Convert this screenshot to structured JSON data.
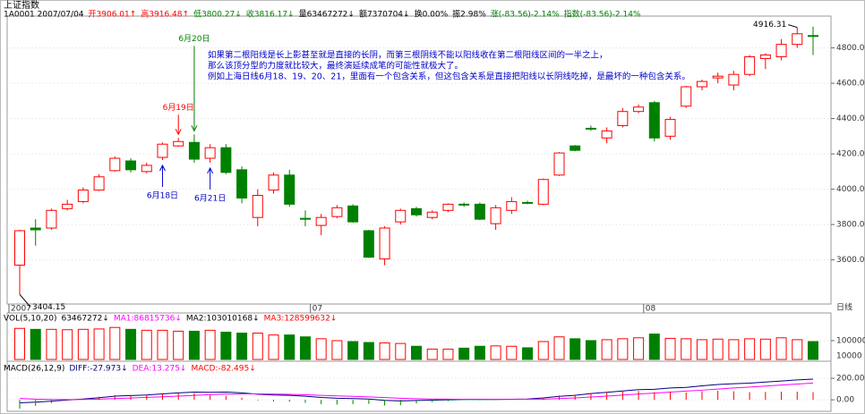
{
  "chart_data": [
    {
      "type": "candlestick",
      "title": "上证指数",
      "info": [
        {
          "text": "1A0001 2007/07/04",
          "color": "#000000"
        },
        {
          "text": "开3906.01↑",
          "color": "#ff0000"
        },
        {
          "text": "高3916.48↑",
          "color": "#ff0000"
        },
        {
          "text": "低3800.27↓",
          "color": "#008000"
        },
        {
          "text": "收3816.17↓",
          "color": "#008000"
        },
        {
          "text": "量63467272↓",
          "color": "#000000"
        },
        {
          "text": "额7370704↓",
          "color": "#000000"
        },
        {
          "text": "换0.00%",
          "color": "#000000"
        },
        {
          "text": "振2.98%",
          "color": "#000000"
        },
        {
          "text": "涨(-83.56)-2.14%",
          "color": "#008000"
        },
        {
          "text": "指数(-83.56)-2.14%",
          "color": "#008000"
        }
      ],
      "period_label": "日线",
      "categories": [
        "2007",
        null,
        null,
        null,
        null,
        null,
        null,
        null,
        null,
        null,
        null,
        null,
        null,
        null,
        null,
        null,
        null,
        null,
        null,
        "07",
        null,
        null,
        null,
        null,
        null,
        null,
        null,
        null,
        null,
        null,
        null,
        null,
        null,
        null,
        null,
        null,
        null,
        null,
        null,
        null,
        "08",
        null,
        null,
        null,
        null,
        null,
        null,
        null,
        null,
        null,
        null
      ],
      "open": [
        3570,
        3780,
        3780,
        3890,
        3930,
        3995,
        4105,
        4160,
        4100,
        4180,
        4245,
        4265,
        4175,
        4235,
        4110,
        3840,
        3995,
        4080,
        3835,
        3795,
        3845,
        3905,
        3765,
        3605,
        3815,
        3890,
        3840,
        3880,
        3915,
        3915,
        3805,
        3880,
        3925,
        3915,
        4080,
        4245,
        4345,
        4290,
        4360,
        4440,
        4490,
        4300,
        4470,
        4580,
        4630,
        4590,
        4650,
        4740,
        4750,
        4820,
        4870
      ],
      "high": [
        3770,
        3830,
        3890,
        3940,
        4010,
        4085,
        4185,
        4175,
        4150,
        4265,
        4290,
        4310,
        4255,
        4255,
        4130,
        4000,
        4095,
        4110,
        3880,
        3860,
        3910,
        3915,
        3770,
        3790,
        3890,
        3900,
        3880,
        3920,
        3925,
        3925,
        3910,
        3955,
        3935,
        4060,
        4210,
        4250,
        4360,
        4350,
        4460,
        4480,
        4500,
        4410,
        4585,
        4620,
        4660,
        4670,
        4760,
        4770,
        4850,
        4916.31,
        4920
      ],
      "low": [
        3404.15,
        3680,
        3770,
        3880,
        3920,
        3990,
        4100,
        4095,
        4090,
        4165,
        4240,
        4150,
        4150,
        4085,
        3920,
        3790,
        3975,
        3900,
        3790,
        3740,
        3835,
        3810,
        3610,
        3570,
        3800,
        3845,
        3830,
        3870,
        3900,
        3825,
        3770,
        3860,
        3915,
        3910,
        4075,
        4215,
        4330,
        4260,
        4350,
        4430,
        4270,
        4280,
        4460,
        4560,
        4600,
        4560,
        4640,
        4680,
        4730,
        4800,
        4760
      ],
      "close": [
        3765,
        3770,
        3880,
        3915,
        3995,
        4070,
        4175,
        4110,
        4135,
        4255,
        4270,
        4170,
        4235,
        4095,
        3950,
        3965,
        4080,
        3915,
        3830,
        3840,
        3895,
        3815,
        3615,
        3780,
        3880,
        3855,
        3870,
        3915,
        3910,
        3830,
        3895,
        3930,
        3920,
        4055,
        4205,
        4220,
        4340,
        4330,
        4440,
        4465,
        4290,
        4395,
        4580,
        4610,
        4640,
        4650,
        4750,
        4760,
        4820,
        4880,
        4865
      ],
      "up_color": "#ff0000",
      "down_color": "#008000",
      "extremes": [
        {
          "text": "4916.31",
          "index": 49,
          "value": 4916.31
        },
        {
          "text": "3404.15",
          "index": 0,
          "value": 3404.15
        }
      ],
      "ylim": [
        3360,
        4970
      ],
      "yticks": [
        {
          "value": 3600,
          "label": "3600.00"
        },
        {
          "value": 3800,
          "label": "3800.00"
        },
        {
          "value": 4000,
          "label": "4000.00"
        },
        {
          "value": 4200,
          "label": "4200.00"
        },
        {
          "value": 4400,
          "label": "4400.00"
        },
        {
          "value": 4600,
          "label": "4600.00"
        },
        {
          "value": 4800,
          "label": "4800.00"
        }
      ],
      "annotation_lines": [
        "如果第二根阳线是长上影甚至就是直接的长阴，而第三根阴线不能以阳线收在第二根阳线区间的一半之上，",
        "那么该顶分型的力度就比较大，最终演延续成笔的可能性就极大了。",
        "例如上海日线6月18、19、20、21，里面有一个包含关系，但这包含关系是直接把阳线以长阴线吃掉，是最坏的一种包含关系。"
      ],
      "date_marks": [
        {
          "text": "6月20日",
          "index": 11,
          "color": "#008000",
          "dir": "down"
        },
        {
          "text": "6月19日",
          "index": 10,
          "color": "#ff0000",
          "dir": "down"
        },
        {
          "text": "6月18日",
          "index": 9,
          "color": "#0000cc",
          "dir": "up"
        },
        {
          "text": "6月21日",
          "index": 12,
          "color": "#0000cc",
          "dir": "up"
        }
      ]
    },
    {
      "type": "bar",
      "legend": [
        {
          "text": "VOL(5,10,20)",
          "color": "#000000"
        },
        {
          "text": "63467272↓",
          "color": "#000000"
        },
        {
          "text": "MA1:86815736↓",
          "color": "#ff00ff"
        },
        {
          "text": "MA2:103010168↓",
          "color": "#000000"
        },
        {
          "text": "MA3:128599632↓",
          "color": "#ff0000"
        }
      ],
      "values": [
        165000,
        160000,
        160000,
        158000,
        160000,
        162000,
        170000,
        160000,
        155000,
        155000,
        150000,
        150000,
        155000,
        145000,
        140000,
        140000,
        130000,
        130000,
        120000,
        110000,
        100000,
        95000,
        90000,
        88000,
        85000,
        70000,
        55000,
        55000,
        60000,
        70000,
        72000,
        70000,
        62000,
        95000,
        120000,
        110000,
        100000,
        105000,
        110000,
        115000,
        135000,
        112000,
        110000,
        105000,
        108000,
        105000,
        110000,
        108000,
        115000,
        105000,
        95000
      ],
      "unit": "10000",
      "ylim": [
        0,
        190000
      ],
      "yticks": [
        100000
      ]
    },
    {
      "type": "macd",
      "label": "MACD(26,12,9)",
      "series": [
        {
          "name": "DIFF",
          "value_label": ":-27.973↓",
          "color": "#000080",
          "values": [
            -28,
            -22,
            -12,
            -2,
            8,
            20,
            34,
            40,
            45,
            55,
            65,
            72,
            70,
            72,
            65,
            52,
            45,
            42,
            33,
            22,
            15,
            12,
            8,
            -5,
            -10,
            -6,
            -3,
            0,
            3,
            3,
            3,
            5,
            8,
            18,
            32,
            42,
            58,
            70,
            82,
            95,
            98,
            110,
            115,
            130,
            142,
            150,
            155,
            165,
            175,
            185,
            192
          ]
        },
        {
          "name": "DEA",
          "value_label": ":13.275↓",
          "color": "#ff00ff",
          "values": [
            13,
            6,
            3,
            2,
            3,
            6,
            12,
            17,
            23,
            28,
            35,
            42,
            48,
            53,
            55,
            55,
            53,
            51,
            47,
            42,
            37,
            32,
            27,
            21,
            15,
            11,
            8,
            6,
            5,
            5,
            4,
            4,
            5,
            7,
            12,
            18,
            26,
            35,
            44,
            54,
            63,
            72,
            81,
            90,
            100,
            110,
            119,
            128,
            137,
            147,
            156
          ]
        },
        {
          "name": "MACD",
          "value_label": ":-82.495↓",
          "color": "#ff0000",
          "down_color": "#008000",
          "bars": true,
          "values": [
            -82,
            -56,
            -30,
            -8,
            10,
            28,
            44,
            46,
            44,
            54,
            60,
            60,
            44,
            38,
            20,
            -6,
            -16,
            -18,
            -28,
            -40,
            -44,
            -40,
            -38,
            -52,
            -50,
            -34,
            -22,
            -12,
            -4,
            -4,
            -2,
            2,
            6,
            22,
            40,
            48,
            64,
            70,
            76,
            82,
            70,
            76,
            68,
            80,
            84,
            80,
            72,
            74,
            76,
            76,
            72
          ]
        }
      ],
      "ylim": [
        -90,
        325
      ],
      "yticks": [
        {
          "value": 0,
          "label": "0.00"
        },
        {
          "value": 200,
          "label": "200.00"
        }
      ]
    }
  ]
}
